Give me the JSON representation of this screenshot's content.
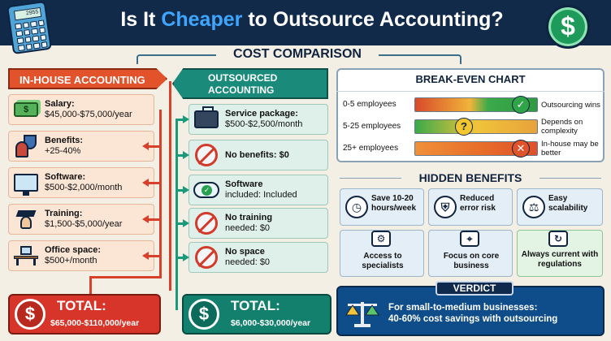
{
  "header": {
    "title_pre": "Is It ",
    "title_highlight": "Cheaper",
    "title_post": " to Outsource Accounting?",
    "calc_display": "2955",
    "dollar_glyph": "$"
  },
  "cost_comparison": {
    "label": "COST COMPARISON",
    "in_house": {
      "header": "IN-HOUSE ACCOUNTING",
      "items": [
        {
          "label": "Salary:",
          "value": "$45,000-$75,000/year"
        },
        {
          "label": "Benefits:",
          "value": "+25-40%"
        },
        {
          "label": "Software:",
          "value": "$500-$2,000/month"
        },
        {
          "label": "Training:",
          "value": "$1,500-$5,000/year"
        },
        {
          "label": "Office space:",
          "value": "$500+/month"
        }
      ],
      "total_label": "TOTAL:",
      "total_value": "$65,000-$110,000/year"
    },
    "outsourced": {
      "header_line1": "OUTSOURCED",
      "header_line2": "ACCOUNTING",
      "items": [
        {
          "label": "Service package:",
          "value": "$500-$2,500/month"
        },
        {
          "label": "No benefits: $0",
          "value": ""
        },
        {
          "label": "Software",
          "value": "included: Included"
        },
        {
          "label": "No training",
          "value": "needed: $0"
        },
        {
          "label": "No space",
          "value": "needed: $0"
        }
      ],
      "total_label": "TOTAL:",
      "total_value": "$6,000-$30,000/year"
    }
  },
  "break_even": {
    "title": "BREAK-EVEN CHART",
    "rows": [
      {
        "label": "0-5 employees",
        "result": "Outsourcing wins",
        "mark": "✓"
      },
      {
        "label": "5-25 employees",
        "result": "Depends on complexity",
        "mark": "?"
      },
      {
        "label": "25+ employees",
        "result": "In-house may be better",
        "mark": "✕"
      }
    ]
  },
  "hidden_benefits": {
    "title": "HIDDEN BENEFITS",
    "cards": [
      {
        "text": "Save 10-20 hours/week",
        "icon": "clock-icon"
      },
      {
        "text": "Reduced error risk",
        "icon": "lock-shield-icon"
      },
      {
        "text": "Easy scalability",
        "icon": "scale-icon"
      },
      {
        "text": "Access to specialists",
        "icon": "brain-gear-icon"
      },
      {
        "text": "Focus on core business",
        "icon": "telescope-icon"
      },
      {
        "text": "Always current with regulations",
        "icon": "document-refresh-icon"
      }
    ]
  },
  "verdict": {
    "tag": "VERDICT",
    "line1": "For small-to-medium businesses:",
    "line2": "40-60% cost savings with outsourcing"
  },
  "colors": {
    "navy": "#122a4a",
    "red": "#d8352a",
    "teal": "#13806e",
    "blue": "#0f4c8a"
  }
}
